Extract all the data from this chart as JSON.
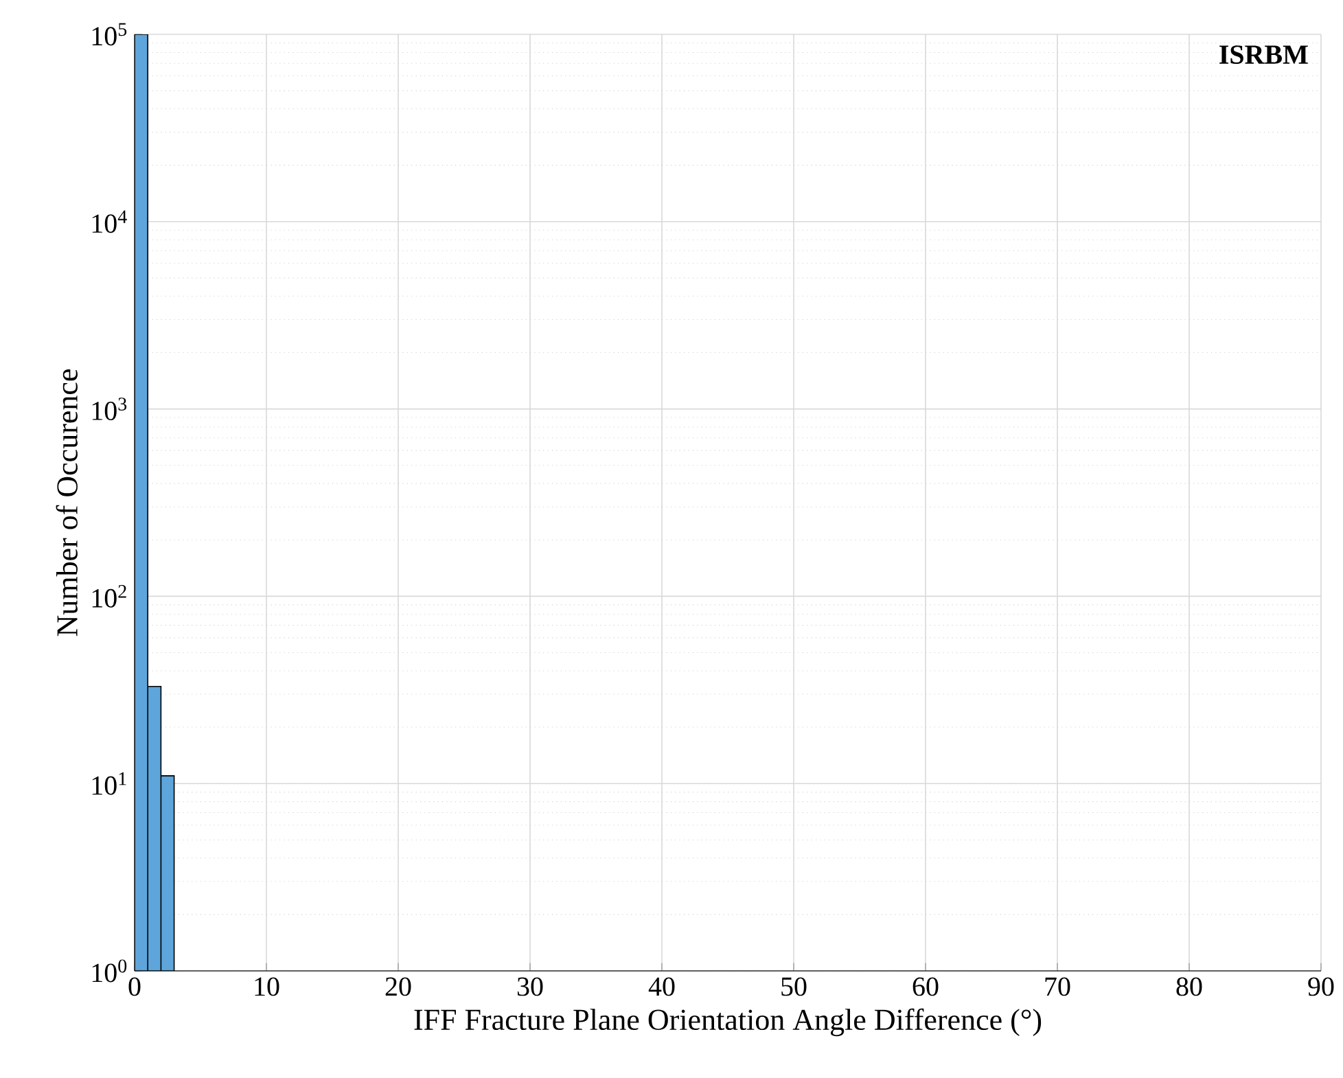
{
  "chart_data": {
    "type": "histogram",
    "xlabel": "IFF Fracture Plane Orientation Angle Difference (°)",
    "ylabel": "Number of Occurence",
    "annotations": [
      "ISRBM"
    ],
    "bins": [
      0,
      1,
      2,
      3
    ],
    "values": [
      100000,
      33,
      11
    ],
    "color": "#5da5da",
    "log": "y",
    "xlim": [
      0,
      90
    ],
    "ylim": [
      1,
      100000
    ],
    "xticks": [
      0,
      10,
      20,
      30,
      40,
      50,
      60,
      70,
      80,
      90
    ],
    "yticks": [
      {
        "value": 1,
        "label": "10$^{0}$"
      },
      {
        "value": 10,
        "label": "10$^{1}$"
      },
      {
        "value": 100,
        "label": "10$^{2}$"
      },
      {
        "value": 1000,
        "label": "10$^{3}$"
      },
      {
        "value": 10000,
        "label": "10$^{4}$"
      },
      {
        "value": 100000,
        "label": "10$^{5}$"
      }
    ],
    "grid": true
  }
}
